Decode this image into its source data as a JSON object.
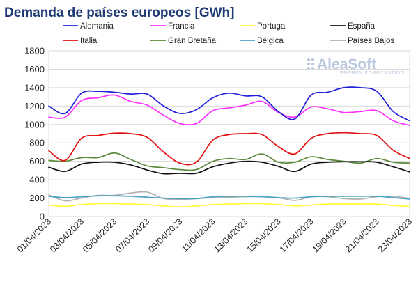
{
  "chart_data": {
    "type": "line",
    "title": "Demanda de países europeos [GWh]",
    "xlabel": "",
    "ylabel": "",
    "ylim": [
      0,
      1800
    ],
    "yticks": [
      0,
      200,
      400,
      600,
      800,
      1000,
      1200,
      1400,
      1600,
      1800
    ],
    "grid": true,
    "legend_position": "top",
    "x": [
      "01/04/2023",
      "02/04/2023",
      "03/04/2023",
      "04/04/2023",
      "05/04/2023",
      "06/04/2023",
      "07/04/2023",
      "08/04/2023",
      "09/04/2023",
      "10/04/2023",
      "11/04/2023",
      "12/04/2023",
      "13/04/2023",
      "14/04/2023",
      "15/04/2023",
      "16/04/2023",
      "17/04/2023",
      "18/04/2023",
      "19/04/2023",
      "20/04/2023",
      "21/04/2023",
      "22/04/2023",
      "23/04/2023"
    ],
    "x_tick_labels": [
      "01/04/2023",
      "03/04/2023",
      "05/04/2023",
      "07/04/2023",
      "09/04/2023",
      "11/04/2023",
      "13/04/2023",
      "15/04/2023",
      "17/04/2023",
      "19/04/2023",
      "21/04/2023",
      "23/04/2023"
    ],
    "series": [
      {
        "name": "Alemania",
        "color": "#1f1fdc",
        "values": [
          1200,
          1120,
          1340,
          1360,
          1350,
          1330,
          1330,
          1200,
          1120,
          1160,
          1290,
          1340,
          1310,
          1300,
          1140,
          1060,
          1320,
          1350,
          1400,
          1400,
          1360,
          1140,
          1040
        ]
      },
      {
        "name": "Francia",
        "color": "#ff30ff",
        "values": [
          1080,
          1080,
          1260,
          1290,
          1320,
          1250,
          1210,
          1100,
          1010,
          1010,
          1150,
          1180,
          1210,
          1250,
          1130,
          1080,
          1190,
          1170,
          1130,
          1140,
          1150,
          1040,
          990
        ]
      },
      {
        "name": "Portugal",
        "color": "#ffff33",
        "values": [
          125,
          110,
          130,
          140,
          140,
          135,
          130,
          115,
          105,
          115,
          130,
          135,
          140,
          140,
          130,
          115,
          125,
          135,
          135,
          135,
          135,
          120,
          110
        ]
      },
      {
        "name": "España",
        "color": "#111111",
        "values": [
          535,
          490,
          570,
          590,
          590,
          560,
          505,
          465,
          470,
          470,
          540,
          580,
          600,
          590,
          545,
          490,
          570,
          590,
          595,
          595,
          590,
          540,
          485
        ]
      },
      {
        "name": "Italia",
        "color": "#e01010",
        "values": [
          715,
          610,
          850,
          880,
          905,
          900,
          860,
          700,
          580,
          590,
          830,
          890,
          900,
          890,
          760,
          680,
          850,
          900,
          910,
          900,
          880,
          720,
          630
        ]
      },
      {
        "name": "Gran Bretaña",
        "color": "#5a8a3a",
        "values": [
          610,
          600,
          640,
          640,
          690,
          620,
          550,
          530,
          510,
          510,
          600,
          630,
          620,
          680,
          590,
          590,
          650,
          620,
          600,
          580,
          630,
          590,
          580
        ]
      },
      {
        "name": "Bélgica",
        "color": "#4aa3c8",
        "values": [
          220,
          205,
          215,
          225,
          225,
          220,
          210,
          200,
          195,
          195,
          215,
          220,
          220,
          215,
          205,
          200,
          215,
          220,
          220,
          220,
          220,
          205,
          190
        ]
      },
      {
        "name": "Países Bajos",
        "color": "#b0b0b0",
        "values": [
          235,
          170,
          200,
          230,
          230,
          255,
          265,
          195,
          185,
          195,
          205,
          210,
          215,
          215,
          205,
          175,
          215,
          215,
          195,
          190,
          215,
          220,
          195
        ]
      }
    ]
  },
  "logo": {
    "name": "AleaSoft",
    "tagline": "ENERGY FORECASTING"
  }
}
